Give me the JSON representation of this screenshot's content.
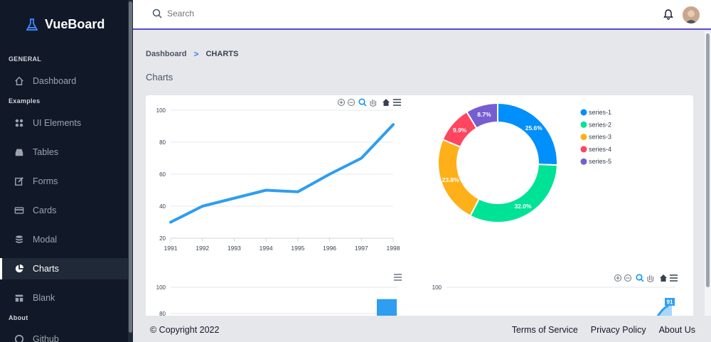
{
  "app": {
    "name": "VueBoard"
  },
  "sidebar": {
    "sections": {
      "general": "GENERAL",
      "examples": "Examples",
      "about": "About"
    },
    "items": [
      {
        "label": "Dashboard"
      },
      {
        "label": "UI Elements"
      },
      {
        "label": "Tables"
      },
      {
        "label": "Forms"
      },
      {
        "label": "Cards"
      },
      {
        "label": "Modal"
      },
      {
        "label": "Charts"
      },
      {
        "label": "Blank"
      },
      {
        "label": "Github"
      }
    ]
  },
  "search": {
    "placeholder": "Search"
  },
  "breadcrumb": {
    "parent": "Dashboard",
    "separator": ">",
    "current": "CHARTS"
  },
  "page": {
    "title": "Charts"
  },
  "footer": {
    "copyright": "© Copyright 2022",
    "links": [
      "Terms of Service",
      "Privacy Policy",
      "About Us"
    ]
  },
  "colors": {
    "accent": "#5b4cc4",
    "line": "#2e9ef0"
  },
  "chart_data": [
    {
      "type": "line",
      "x": [
        "1991",
        "1992",
        "1993",
        "1994",
        "1995",
        "1996",
        "1997",
        "1998"
      ],
      "values": [
        30,
        40,
        45,
        50,
        49,
        60,
        70,
        91
      ],
      "y_ticks": [
        "100",
        "80",
        "60",
        "40",
        "20"
      ],
      "ylim": [
        20,
        100
      ]
    },
    {
      "type": "pie",
      "donut": true,
      "labels": [
        "series-1",
        "series-2",
        "series-3",
        "series-4",
        "series-5"
      ],
      "values": [
        25.6,
        32.0,
        23.8,
        9.9,
        8.7
      ],
      "value_labels": [
        "25.6%",
        "32.0%",
        "23.8%",
        "9.9%",
        "8.7%"
      ],
      "colors": [
        "#008ffb",
        "#00e396",
        "#feb019",
        "#ff4560",
        "#775dd0"
      ]
    },
    {
      "type": "bar",
      "y_ticks": [
        "100",
        "80"
      ],
      "ylim": [
        0,
        100
      ],
      "visible_values": [
        91
      ]
    },
    {
      "type": "area",
      "y_ticks": [
        "100"
      ],
      "data_label": "91"
    }
  ]
}
